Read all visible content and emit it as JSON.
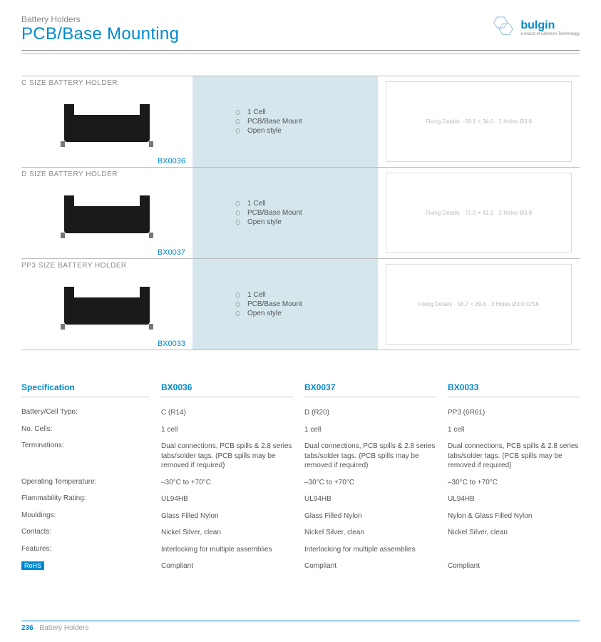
{
  "header": {
    "category": "Battery Holders",
    "title": "PCB/Base Mounting",
    "logo_name": "bulgin",
    "logo_sub": "a brand of Elektron Technology",
    "logo_color": "#0089cf",
    "hex_stroke": "#9fc5e0"
  },
  "products": [
    {
      "title": "C SIZE BATTERY HOLDER",
      "part": "BX0036",
      "features": [
        "1 Cell",
        "PCB/Base Mount",
        "Open style"
      ],
      "drawing_note": "Fixing Details · 59.1 × 34.0 · 2 Holes Ø3.8"
    },
    {
      "title": "D SIZE BATTERY HOLDER",
      "part": "BX0037",
      "features": [
        "1 Cell",
        "PCB/Base Mount",
        "Open style"
      ],
      "drawing_note": "Fixing Details · 71.0 × 41.9 · 2 Holes Ø3.8"
    },
    {
      "title": "PP3 SIZE BATTERY HOLDER",
      "part": "BX0033",
      "features": [
        "1 Cell",
        "PCB/Base Mount",
        "Open style"
      ],
      "drawing_note": "Fixing Details · 58.7 × 29.8 · 2 Holes Ø3.0 C/SK"
    }
  ],
  "feat_box_bg": "#d5e6ed",
  "spec": {
    "heading": "Specification",
    "cols": [
      "BX0036",
      "BX0037",
      "BX0033"
    ],
    "rows": [
      {
        "label": "Battery/Cell Type:",
        "vals": [
          "C (R14)",
          "D (R20)",
          "PP3 (6R61)"
        ]
      },
      {
        "label": "No. Cells:",
        "vals": [
          "1 cell",
          "1 cell",
          "1 cell"
        ]
      },
      {
        "label": "Terminations:",
        "vals": [
          "Dual connections, PCB spills & 2.8 series tabs/solder tags. (PCB spills may be removed if required)",
          "Dual connections, PCB spills & 2.8 series tabs/solder tags. (PCB spills may be removed if required)",
          "Dual connections, PCB spills & 2.8 series tabs/solder tags. (PCB spills may be removed if required)"
        ]
      },
      {
        "label": "Operating Temperature:",
        "vals": [
          "–30°C to +70°C",
          "–30°C to +70°C",
          "–30°C to +70°C"
        ]
      },
      {
        "label": "Flammability Rating:",
        "vals": [
          "UL94HB",
          "UL94HB",
          "UL94HB"
        ]
      },
      {
        "label": "Mouldings:",
        "vals": [
          "Glass Filled Nylon",
          "Glass Filled Nylon",
          "Nylon & Glass Filled Nylon"
        ]
      },
      {
        "label": "Contacts:",
        "vals": [
          "Nickel Silver, clean",
          "Nickel Silver, clean",
          "Nickel Silver, clean"
        ]
      },
      {
        "label": "Features:",
        "vals": [
          "Interlocking for multiple assemblies",
          "Interlocking for multiple assemblies",
          ""
        ]
      }
    ],
    "rohs_label": "RoHS",
    "rohs_vals": [
      "Compliant",
      "Compliant",
      "Compliant"
    ]
  },
  "footer": {
    "page": "236",
    "category": "Battery Holders"
  }
}
